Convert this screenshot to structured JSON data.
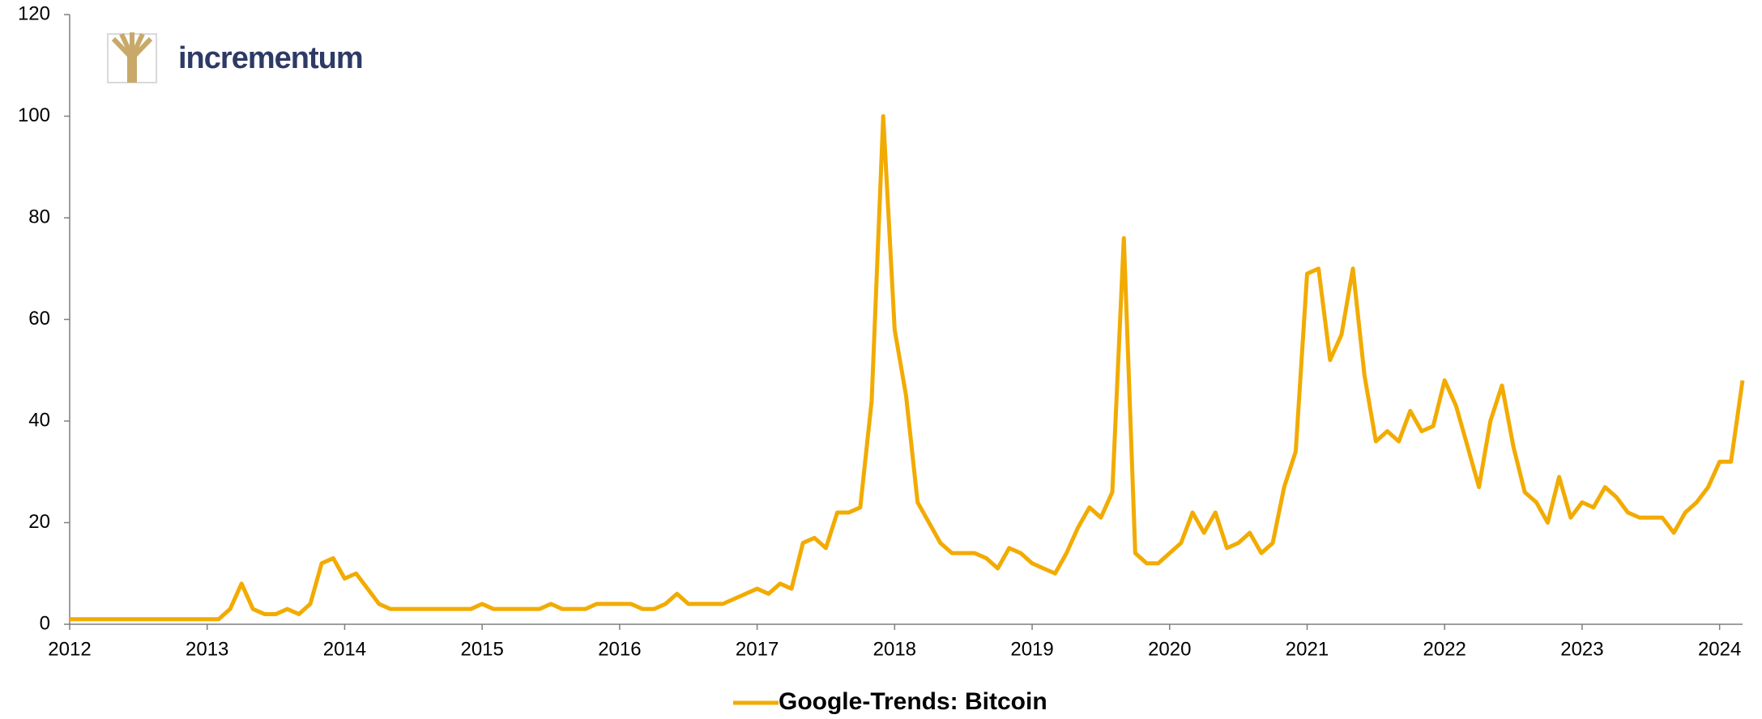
{
  "logo_text": "incrementum",
  "chart_data": {
    "type": "line",
    "x": [
      2012,
      2012.083,
      2012.167,
      2012.25,
      2012.333,
      2012.417,
      2012.5,
      2012.583,
      2012.667,
      2012.75,
      2012.833,
      2012.917,
      2013,
      2013.083,
      2013.167,
      2013.25,
      2013.333,
      2013.417,
      2013.5,
      2013.583,
      2013.667,
      2013.75,
      2013.833,
      2013.917,
      2014,
      2014.083,
      2014.167,
      2014.25,
      2014.333,
      2014.417,
      2014.5,
      2014.583,
      2014.667,
      2014.75,
      2014.833,
      2014.917,
      2015,
      2015.083,
      2015.167,
      2015.25,
      2015.333,
      2015.417,
      2015.5,
      2015.583,
      2015.667,
      2015.75,
      2015.833,
      2015.917,
      2016,
      2016.083,
      2016.167,
      2016.25,
      2016.333,
      2016.417,
      2016.5,
      2016.583,
      2016.667,
      2016.75,
      2016.833,
      2016.917,
      2017,
      2017.083,
      2017.167,
      2017.25,
      2017.333,
      2017.417,
      2017.5,
      2017.583,
      2017.667,
      2017.75,
      2017.833,
      2017.917,
      2018,
      2018.083,
      2018.167,
      2018.25,
      2018.333,
      2018.417,
      2018.5,
      2018.583,
      2018.667,
      2018.75,
      2018.833,
      2018.917,
      2019,
      2019.083,
      2019.167,
      2019.25,
      2019.333,
      2019.417,
      2019.5,
      2019.583,
      2019.667,
      2019.75,
      2019.833,
      2019.917,
      2020,
      2020.083,
      2020.167,
      2020.25,
      2020.333,
      2020.417,
      2020.5,
      2020.583,
      2020.667,
      2020.75,
      2020.833,
      2020.917,
      2021,
      2021.083,
      2021.167,
      2021.25,
      2021.333,
      2021.417,
      2021.5,
      2021.583,
      2021.667,
      2021.75,
      2021.833,
      2021.917,
      2022,
      2022.083,
      2022.167,
      2022.25,
      2022.333,
      2022.417,
      2022.5,
      2022.583,
      2022.667,
      2022.75,
      2022.833,
      2022.917,
      2023,
      2023.083,
      2023.167,
      2023.25,
      2023.333,
      2023.417,
      2023.5,
      2023.583,
      2023.667,
      2023.75,
      2023.833,
      2023.917,
      2024,
      2024.083,
      2024.167
    ],
    "series": [
      {
        "name": "Google-Trends: Bitcoin",
        "color": "#f2ab00",
        "values": [
          1,
          1,
          1,
          1,
          1,
          1,
          1,
          1,
          1,
          1,
          1,
          1,
          1,
          1,
          3,
          8,
          3,
          2,
          2,
          3,
          2,
          4,
          12,
          13,
          9,
          10,
          7,
          4,
          3,
          3,
          3,
          3,
          3,
          3,
          3,
          3,
          4,
          3,
          3,
          3,
          3,
          3,
          4,
          3,
          3,
          3,
          4,
          4,
          4,
          4,
          3,
          3,
          4,
          6,
          4,
          4,
          4,
          4,
          5,
          6,
          7,
          6,
          8,
          7,
          16,
          17,
          15,
          22,
          22,
          23,
          44,
          100,
          58,
          45,
          24,
          20,
          16,
          14,
          14,
          14,
          13,
          11,
          15,
          14,
          12,
          11,
          10,
          14,
          19,
          23,
          21,
          26,
          76,
          14,
          12,
          12,
          14,
          16,
          22,
          18,
          22,
          15,
          16,
          18,
          14,
          16,
          27,
          34,
          69,
          70,
          52,
          57,
          70,
          49,
          36,
          38,
          36,
          42,
          38,
          39,
          48,
          43,
          35,
          27,
          40,
          47,
          35,
          26,
          24,
          20,
          29,
          21,
          24,
          23,
          27,
          25,
          22,
          21,
          21,
          21,
          18,
          22,
          24,
          27,
          32,
          32,
          48
        ]
      }
    ],
    "xlim": [
      2012,
      2024.167
    ],
    "xticks": [
      2012,
      2013,
      2014,
      2015,
      2016,
      2017,
      2018,
      2019,
      2020,
      2021,
      2022,
      2023,
      2024
    ],
    "ylim": [
      0,
      120
    ],
    "yticks": [
      0,
      20,
      40,
      60,
      80,
      100,
      120
    ],
    "legend": "bottom"
  }
}
